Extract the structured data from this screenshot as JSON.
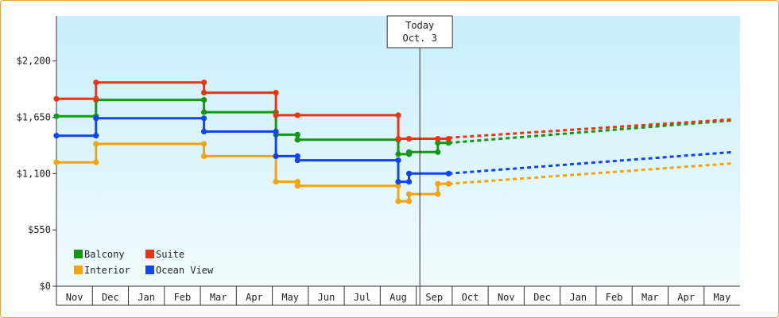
{
  "chart_data": {
    "type": "line",
    "step": true,
    "title": "",
    "xlabel": "",
    "ylabel": "",
    "ylim": [
      0,
      2640
    ],
    "y_ticks": [
      {
        "value": 0,
        "label": "$0"
      },
      {
        "value": 550,
        "label": "$550"
      },
      {
        "value": 1100,
        "label": "$1,100"
      },
      {
        "value": 1650,
        "label": "$1,650"
      },
      {
        "value": 2200,
        "label": "$2,200"
      }
    ],
    "x_ticks": [
      "Nov",
      "Dec",
      "Jan",
      "Feb",
      "Mar",
      "Apr",
      "May",
      "Jun",
      "Jul",
      "Aug",
      "Sep",
      "Oct",
      "Nov",
      "Dec",
      "Jan",
      "Feb",
      "Mar",
      "Apr",
      "May"
    ],
    "today": {
      "line1": "Today",
      "line2": "Oct. 3",
      "x": 10.1
    },
    "forecast_end_x": 18.8,
    "legend": {
      "placement": "bottom-left",
      "columns": 2
    },
    "grid": false,
    "series": [
      {
        "name": "Balcony",
        "color": "#119911",
        "points": [
          {
            "x": 0,
            "y": 1660
          },
          {
            "x": 1.1,
            "y": 1660
          },
          {
            "x": 1.1,
            "y": 1820
          },
          {
            "x": 4.1,
            "y": 1820
          },
          {
            "x": 4.1,
            "y": 1700
          },
          {
            "x": 6.1,
            "y": 1700
          },
          {
            "x": 6.1,
            "y": 1480
          },
          {
            "x": 6.7,
            "y": 1480
          },
          {
            "x": 6.7,
            "y": 1430
          },
          {
            "x": 9.5,
            "y": 1430
          },
          {
            "x": 9.5,
            "y": 1290
          },
          {
            "x": 9.8,
            "y": 1290
          },
          {
            "x": 9.8,
            "y": 1310
          },
          {
            "x": 10.6,
            "y": 1310
          },
          {
            "x": 10.6,
            "y": 1400
          },
          {
            "x": 10.9,
            "y": 1400
          }
        ],
        "forecast": [
          {
            "x": 10.9,
            "y": 1400
          },
          {
            "x": 18.8,
            "y": 1620
          }
        ]
      },
      {
        "name": "Suite",
        "color": "#ee3311",
        "points": [
          {
            "x": 0,
            "y": 1830
          },
          {
            "x": 1.1,
            "y": 1830
          },
          {
            "x": 1.1,
            "y": 1990
          },
          {
            "x": 4.1,
            "y": 1990
          },
          {
            "x": 4.1,
            "y": 1890
          },
          {
            "x": 6.1,
            "y": 1890
          },
          {
            "x": 6.1,
            "y": 1670
          },
          {
            "x": 6.7,
            "y": 1670
          },
          {
            "x": 9.5,
            "y": 1670
          },
          {
            "x": 9.5,
            "y": 1440
          },
          {
            "x": 9.8,
            "y": 1440
          },
          {
            "x": 10.6,
            "y": 1440
          },
          {
            "x": 10.9,
            "y": 1440
          }
        ],
        "forecast": [
          {
            "x": 10.9,
            "y": 1450
          },
          {
            "x": 18.8,
            "y": 1630
          }
        ]
      },
      {
        "name": "Interior",
        "color": "#f5a30a",
        "points": [
          {
            "x": 0,
            "y": 1210
          },
          {
            "x": 1.1,
            "y": 1210
          },
          {
            "x": 1.1,
            "y": 1390
          },
          {
            "x": 4.1,
            "y": 1390
          },
          {
            "x": 4.1,
            "y": 1270
          },
          {
            "x": 6.1,
            "y": 1270
          },
          {
            "x": 6.1,
            "y": 1020
          },
          {
            "x": 6.7,
            "y": 1020
          },
          {
            "x": 6.7,
            "y": 980
          },
          {
            "x": 9.5,
            "y": 980
          },
          {
            "x": 9.5,
            "y": 830
          },
          {
            "x": 9.8,
            "y": 830
          },
          {
            "x": 9.8,
            "y": 900
          },
          {
            "x": 10.6,
            "y": 900
          },
          {
            "x": 10.6,
            "y": 1000
          },
          {
            "x": 10.9,
            "y": 1000
          }
        ],
        "forecast": [
          {
            "x": 10.9,
            "y": 1000
          },
          {
            "x": 18.8,
            "y": 1200
          }
        ]
      },
      {
        "name": "Ocean View",
        "color": "#1144ee",
        "points": [
          {
            "x": 0,
            "y": 1470
          },
          {
            "x": 1.1,
            "y": 1470
          },
          {
            "x": 1.1,
            "y": 1640
          },
          {
            "x": 4.1,
            "y": 1640
          },
          {
            "x": 4.1,
            "y": 1510
          },
          {
            "x": 6.1,
            "y": 1510
          },
          {
            "x": 6.1,
            "y": 1270
          },
          {
            "x": 6.7,
            "y": 1270
          },
          {
            "x": 6.7,
            "y": 1230
          },
          {
            "x": 9.5,
            "y": 1230
          },
          {
            "x": 9.5,
            "y": 1020
          },
          {
            "x": 9.8,
            "y": 1020
          },
          {
            "x": 9.8,
            "y": 1100
          },
          {
            "x": 10.9,
            "y": 1100
          }
        ],
        "forecast": [
          {
            "x": 10.9,
            "y": 1100
          },
          {
            "x": 18.8,
            "y": 1310
          }
        ]
      }
    ]
  }
}
